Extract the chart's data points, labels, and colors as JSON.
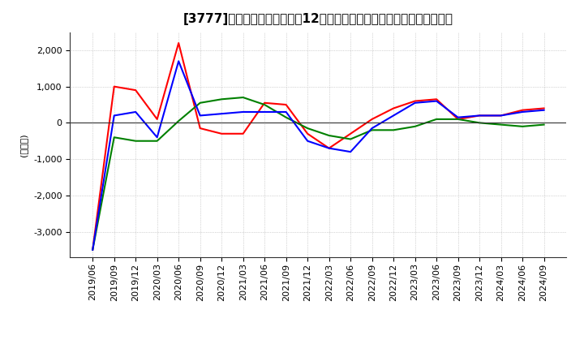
{
  "title": "[3777]　キャッシュフローの12か月移動合計の対前年同期増減額の推移",
  "ylabel": "(百万円)",
  "ylim": [
    -3700,
    2500
  ],
  "yticks": [
    -3000,
    -2000,
    -1000,
    0,
    1000,
    2000
  ],
  "dates": [
    "2019/06",
    "2019/09",
    "2019/12",
    "2020/03",
    "2020/06",
    "2020/09",
    "2020/12",
    "2021/03",
    "2021/06",
    "2021/09",
    "2021/12",
    "2022/03",
    "2022/06",
    "2022/09",
    "2022/12",
    "2023/03",
    "2023/06",
    "2023/09",
    "2023/12",
    "2024/03",
    "2024/06",
    "2024/09"
  ],
  "operating_cf": [
    -3500,
    1000,
    900,
    100,
    2200,
    -150,
    -300,
    -300,
    550,
    500,
    -300,
    -700,
    -300,
    100,
    400,
    600,
    650,
    100,
    200,
    200,
    350,
    400
  ],
  "investing_cf": [
    -3500,
    -400,
    -500,
    -500,
    50,
    550,
    650,
    700,
    500,
    150,
    -150,
    -350,
    -450,
    -200,
    -200,
    -100,
    100,
    100,
    0,
    -50,
    -100,
    -50
  ],
  "free_cf": [
    -3500,
    200,
    300,
    -400,
    1700,
    200,
    250,
    300,
    300,
    300,
    -500,
    -700,
    -800,
    -150,
    200,
    550,
    600,
    150,
    200,
    200,
    300,
    350
  ],
  "operating_color": "#ff0000",
  "investing_color": "#008000",
  "free_color": "#0000ff",
  "background_color": "#ffffff",
  "grid_color": "#b0b0b0",
  "title_fontsize": 11,
  "axis_fontsize": 8,
  "legend_fontsize": 9
}
